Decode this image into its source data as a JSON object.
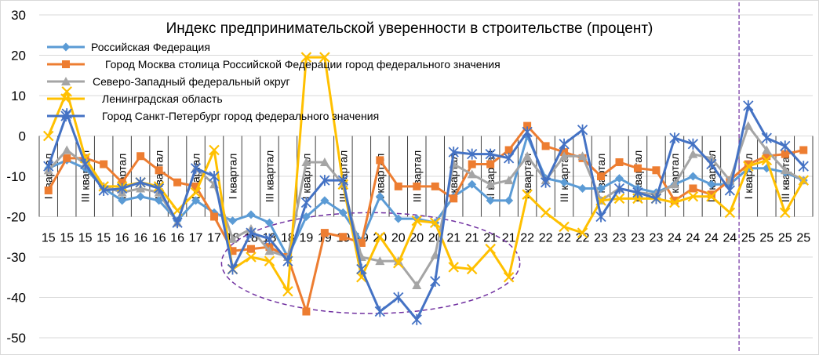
{
  "chart_data": {
    "type": "line",
    "title": "Индекс предпринимательской уверенности в строительстве (процент)",
    "xlabel": "",
    "ylabel": "",
    "ylim": [
      -50,
      30
    ],
    "yticks": [
      30,
      20,
      10,
      0,
      -10,
      -20,
      -30,
      -40,
      -50
    ],
    "grid": true,
    "legend_position": "top-left",
    "x": [
      {
        "year": "15",
        "quarter": "I квартал"
      },
      {
        "year": "15",
        "quarter": ""
      },
      {
        "year": "15",
        "quarter": "III квартал"
      },
      {
        "year": "15",
        "quarter": ""
      },
      {
        "year": "16",
        "quarter": "I квартал"
      },
      {
        "year": "16",
        "quarter": ""
      },
      {
        "year": "16",
        "quarter": "III квартал"
      },
      {
        "year": "16",
        "quarter": ""
      },
      {
        "year": "17",
        "quarter": "I квартал"
      },
      {
        "year": "17",
        "quarter": ""
      },
      {
        "year": "18",
        "quarter": "I квартал"
      },
      {
        "year": "18",
        "quarter": ""
      },
      {
        "year": "18",
        "quarter": "III квартал"
      },
      {
        "year": "18",
        "quarter": ""
      },
      {
        "year": "19",
        "quarter": "I квартал"
      },
      {
        "year": "19",
        "quarter": ""
      },
      {
        "year": "19",
        "quarter": "III квартал"
      },
      {
        "year": "19",
        "quarter": ""
      },
      {
        "year": "20",
        "quarter": "I квартал"
      },
      {
        "year": "20",
        "quarter": ""
      },
      {
        "year": "20",
        "quarter": "III квартал"
      },
      {
        "year": "20",
        "quarter": ""
      },
      {
        "year": "21",
        "quarter": "I квартал"
      },
      {
        "year": "21",
        "quarter": ""
      },
      {
        "year": "21",
        "quarter": "III квартал"
      },
      {
        "year": "21",
        "quarter": ""
      },
      {
        "year": "22",
        "quarter": "I квартал"
      },
      {
        "year": "22",
        "quarter": ""
      },
      {
        "year": "22",
        "quarter": "III квартал"
      },
      {
        "year": "22",
        "quarter": ""
      },
      {
        "year": "23",
        "quarter": "I квартал"
      },
      {
        "year": "23",
        "quarter": ""
      },
      {
        "year": "23",
        "quarter": "III квартал"
      },
      {
        "year": "23",
        "quarter": ""
      },
      {
        "year": "24",
        "quarter": "I квартал"
      },
      {
        "year": "24",
        "quarter": ""
      },
      {
        "year": "24",
        "quarter": "III квартал"
      },
      {
        "year": "24",
        "quarter": ""
      },
      {
        "year": "25",
        "quarter": "I квартал"
      },
      {
        "year": "25",
        "quarter": ""
      },
      {
        "year": "25",
        "quarter": "III квартал"
      },
      {
        "year": "25",
        "quarter": ""
      }
    ],
    "series": [
      {
        "name": "Российская Федерация",
        "color": "#5B9BD5",
        "marker": "diamond",
        "values": [
          -8,
          -6,
          -8,
          -13,
          -16,
          -15,
          -16,
          -21,
          -16,
          -19,
          -21,
          -19.5,
          -21.5,
          -30,
          -20,
          -16,
          -19,
          -26,
          -15,
          -20.5,
          -20.5,
          -21.5,
          -15,
          -12,
          -16,
          -16,
          0,
          -10.5,
          -11.5,
          -13,
          -13,
          -10.5,
          -13,
          -14,
          -12,
          -10,
          -12,
          -12,
          -8,
          -8,
          -9,
          -11
        ]
      },
      {
        "name": "Город Москва столица Российской Федерации город федерального значения",
        "color": "#ED7D31",
        "marker": "square",
        "values": [
          -13.5,
          -5.5,
          -5.5,
          -7,
          -11.5,
          -5,
          -8.5,
          -11.5,
          -12.5,
          -20,
          -28.5,
          -28,
          -27.5,
          -30,
          -43.5,
          -24,
          -25,
          -26.5,
          -6,
          -12.5,
          -12.5,
          -12.5,
          -15.5,
          -7,
          -7,
          -3.5,
          2.5,
          -2.5,
          -4,
          -5.5,
          -10,
          -6.5,
          -8,
          -8.5,
          -16,
          -13,
          -14.5,
          -11,
          -7,
          -5,
          -4.5,
          -3.5
        ]
      },
      {
        "name": "Северо-Западный федеральный округ",
        "color": "#A5A5A5",
        "marker": "triangle",
        "values": [
          -8.5,
          -3.5,
          -7,
          -12.5,
          -14,
          -13,
          -14,
          -21.5,
          -8,
          -12,
          -25.5,
          -23,
          -28.5,
          -30,
          -6.5,
          -6.5,
          -12,
          -30,
          -31,
          -31,
          -37,
          -29.5,
          -7,
          -9.5,
          -12,
          -11,
          -5,
          -11,
          -5,
          -5,
          -16,
          -13,
          -14,
          -14.5,
          -12,
          -4.5,
          -5.5,
          -11,
          2.5,
          -3.5,
          -8.5,
          -11
        ]
      },
      {
        "name": "Ленинградская область",
        "color": "#FFC000",
        "marker": "x",
        "values": [
          0,
          11,
          -5.5,
          -12.5,
          -12.5,
          -11.5,
          -12.5,
          -18.5,
          -14,
          -3.5,
          -33,
          -30,
          -31,
          -38.5,
          19.5,
          19.5,
          -12,
          -35,
          -25,
          -31.5,
          -21,
          -21.5,
          -32.5,
          -33,
          -28,
          -35,
          -14.5,
          -19,
          -22.5,
          -24,
          -16,
          -15.5,
          -15.5,
          -15.5,
          -16.5,
          -15,
          -15,
          -19,
          -7.5,
          -6,
          -19,
          -11
        ]
      },
      {
        "name": "Город Санкт-Петербург город федерального значения",
        "color": "#4472C4",
        "marker": "star",
        "values": [
          -7.5,
          5.5,
          -7,
          -13.5,
          -13,
          -11.5,
          -13,
          -21.5,
          -8,
          -10,
          -33,
          -24,
          -25.5,
          -31,
          -16.5,
          -11,
          -11,
          -33,
          -43.5,
          -40,
          -45.5,
          -36,
          -4,
          -4.5,
          -4.5,
          -5.5,
          1,
          -11.5,
          -2,
          1.5,
          -20,
          -13,
          -14,
          -15.5,
          -0.5,
          -2,
          -7,
          -13.5,
          7.5,
          -0.5,
          -2.5,
          -7.5
        ]
      }
    ],
    "annotations": [
      {
        "type": "dashed-vertical-line",
        "color": "#7030A0",
        "between_points": [
          37,
          38
        ]
      },
      {
        "type": "dashed-ellipse",
        "color": "#7030A0",
        "around_points": [
          10,
          24
        ],
        "y_range": [
          -44,
          -19
        ]
      }
    ]
  }
}
